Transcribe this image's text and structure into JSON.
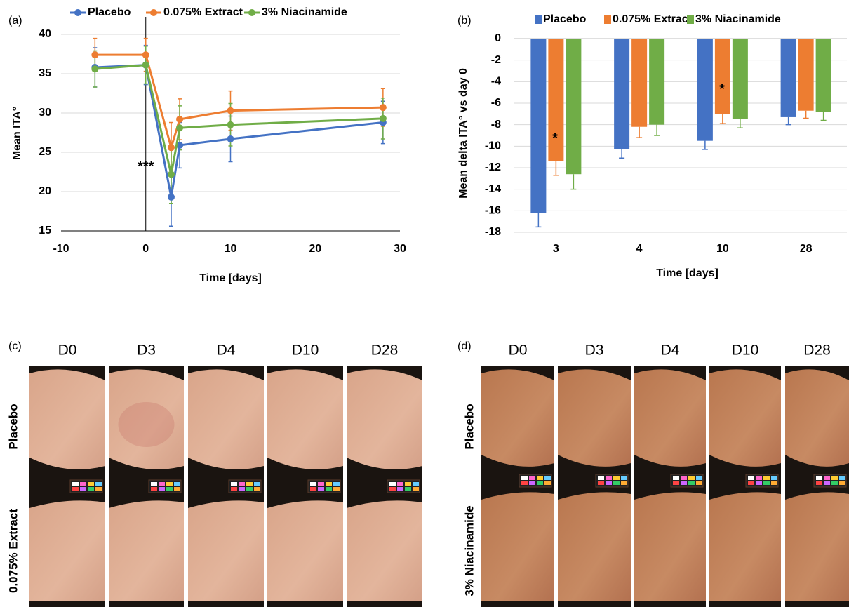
{
  "chart_data": [
    {
      "type": "line",
      "panel": "(a)",
      "x_label": "Time [days]",
      "y_label": "Mean ITA°",
      "x": [
        -6,
        0,
        3,
        4,
        10,
        28
      ],
      "xlim": [
        -10,
        30
      ],
      "xticks": [
        -10,
        0,
        10,
        20,
        30
      ],
      "ylim": [
        15,
        40
      ],
      "yticks": [
        15,
        20,
        25,
        30,
        35,
        40
      ],
      "grid": true,
      "annotation": "***",
      "series": [
        {
          "name": "Placebo",
          "color": "#4472c4",
          "values": [
            35.8,
            36.1,
            19.3,
            25.9,
            26.7,
            28.8
          ],
          "errors": [
            2.5,
            2.5,
            3.7,
            2.9,
            2.9,
            2.7
          ]
        },
        {
          "name": "0.075% Extract",
          "color": "#ed7d31",
          "values": [
            37.4,
            37.4,
            25.6,
            29.2,
            30.3,
            30.7
          ],
          "errors": [
            2.1,
            2.1,
            3.2,
            2.6,
            2.5,
            2.4
          ]
        },
        {
          "name": "3% Niacinamide",
          "color": "#70ad47",
          "values": [
            35.6,
            36.1,
            22.2,
            28.1,
            28.5,
            29.3
          ],
          "errors": [
            2.3,
            2.4,
            3.7,
            2.8,
            2.7,
            2.6
          ]
        }
      ]
    },
    {
      "type": "bar",
      "panel": "(b)",
      "x_label": "Time [days]",
      "y_label": "Mean delta ITA° vs day 0",
      "categories": [
        "3",
        "4",
        "10",
        "28"
      ],
      "ylim": [
        -18,
        0
      ],
      "yticks": [
        -18,
        -16,
        -14,
        -12,
        -10,
        -8,
        -6,
        -4,
        -2,
        0
      ],
      "grid": true,
      "annotations": [
        "*",
        "*"
      ],
      "series": [
        {
          "name": "Placebo",
          "color": "#4472c4",
          "values": [
            -16.2,
            -10.3,
            -9.5,
            -7.3
          ],
          "errors": [
            1.3,
            0.8,
            0.8,
            0.7
          ]
        },
        {
          "name": "0.075% Extract",
          "color": "#ed7d31",
          "values": [
            -11.4,
            -8.2,
            -7.0,
            -6.7
          ],
          "errors": [
            1.3,
            1.0,
            0.9,
            0.7
          ]
        },
        {
          "name": "3% Niacinamide",
          "color": "#70ad47",
          "values": [
            -12.6,
            -8.0,
            -7.5,
            -6.8
          ],
          "errors": [
            1.4,
            1.0,
            0.8,
            0.8
          ]
        }
      ]
    }
  ],
  "photos": [
    {
      "panel": "(c)",
      "columns": [
        "D0",
        "D3",
        "D4",
        "D10",
        "D28"
      ],
      "rows": [
        "Placebo",
        "0.075% Extract"
      ]
    },
    {
      "panel": "(d)",
      "columns": [
        "D0",
        "D3",
        "D4",
        "D10",
        "D28"
      ],
      "rows": [
        "Placebo",
        "3% Niacinamide"
      ]
    }
  ]
}
